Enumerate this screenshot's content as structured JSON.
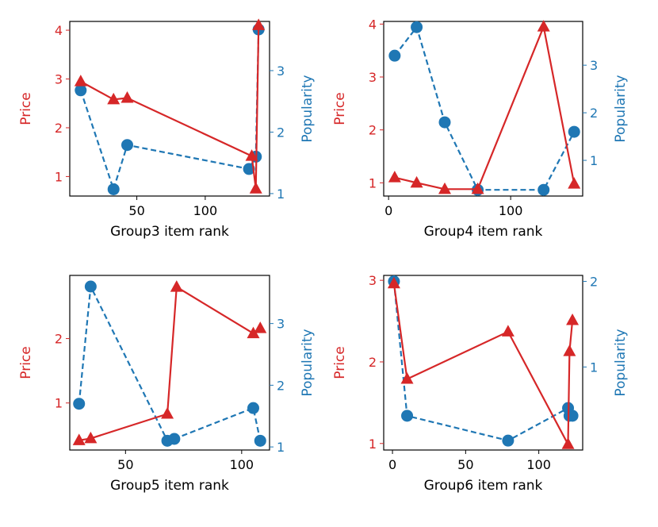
{
  "colors": {
    "price": "#d62728",
    "popularity": "#1f77b4",
    "axes": "#000000"
  },
  "chart_data": [
    {
      "type": "line",
      "xlabel": "Group3 item rank",
      "ylabel_left": "Price",
      "ylabel_right": "Popularity",
      "xlim": [
        1,
        147
      ],
      "ylim_left": [
        0.6,
        4.18
      ],
      "ylim_right": [
        0.96,
        3.8
      ],
      "xticks": [
        50,
        100
      ],
      "yticks_left": [
        1,
        2,
        3,
        4
      ],
      "yticks_right": [
        1,
        2,
        3
      ],
      "series": [
        {
          "name": "Price",
          "axis": "left",
          "style": "solid",
          "marker": "triangle",
          "x": [
            9,
            33,
            43,
            134,
            137,
            139
          ],
          "y": [
            2.95,
            2.58,
            2.61,
            1.42,
            0.75,
            4.1
          ]
        },
        {
          "name": "Popularity",
          "axis": "right",
          "style": "dashed",
          "marker": "circle",
          "x": [
            9,
            33,
            43,
            132,
            137,
            139
          ],
          "y": [
            2.68,
            1.07,
            1.79,
            1.4,
            1.6,
            3.67
          ]
        }
      ]
    },
    {
      "type": "line",
      "xlabel": "Group4 item rank",
      "ylabel_left": "Price",
      "ylabel_right": "Popularity",
      "xlim": [
        -4,
        159
      ],
      "ylim_left": [
        0.75,
        4.05
      ],
      "ylim_right": [
        0.25,
        3.92
      ],
      "xticks": [
        0,
        100
      ],
      "yticks_left": [
        1,
        2,
        3,
        4
      ],
      "yticks_right": [
        1,
        2,
        3
      ],
      "series": [
        {
          "name": "Price",
          "axis": "left",
          "style": "solid",
          "marker": "triangle",
          "x": [
            5,
            23,
            46,
            73,
            127,
            152
          ],
          "y": [
            1.1,
            1.0,
            0.88,
            0.88,
            3.95,
            0.98
          ]
        },
        {
          "name": "Popularity",
          "axis": "right",
          "style": "dashed",
          "marker": "circle",
          "x": [
            5,
            23,
            46,
            73,
            127,
            152
          ],
          "y": [
            3.2,
            3.8,
            1.8,
            0.38,
            0.38,
            1.6
          ]
        }
      ]
    },
    {
      "type": "line",
      "xlabel": "Group5 item rank",
      "ylabel_left": "Price",
      "ylabel_right": "Popularity",
      "xlim": [
        26,
        112
      ],
      "ylim_left": [
        0.27,
        2.98
      ],
      "ylim_right": [
        0.95,
        3.78
      ],
      "xticks": [
        50,
        100
      ],
      "yticks_left": [
        1,
        2
      ],
      "yticks_right": [
        1,
        2,
        3
      ],
      "series": [
        {
          "name": "Price",
          "axis": "left",
          "style": "solid",
          "marker": "triangle",
          "x": [
            30,
            35,
            68,
            72,
            105,
            108
          ],
          "y": [
            0.42,
            0.45,
            0.83,
            2.8,
            2.08,
            2.16
          ]
        },
        {
          "name": "Popularity",
          "axis": "right",
          "style": "dashed",
          "marker": "circle",
          "x": [
            30,
            35,
            68,
            71,
            105,
            108
          ],
          "y": [
            1.7,
            3.6,
            1.1,
            1.13,
            1.63,
            1.1
          ]
        }
      ]
    },
    {
      "type": "line",
      "xlabel": "Group6 item rank",
      "ylabel_left": "Price",
      "ylabel_right": "Popularity",
      "xlim": [
        -6,
        130
      ],
      "ylim_left": [
        0.92,
        3.06
      ],
      "ylim_right": [
        0.03,
        2.07
      ],
      "xticks": [
        0,
        50,
        100
      ],
      "yticks_left": [
        1,
        2,
        3
      ],
      "yticks_right": [
        1,
        2
      ],
      "series": [
        {
          "name": "Price",
          "axis": "left",
          "style": "solid",
          "marker": "triangle",
          "x": [
            1,
            10,
            79,
            120,
            121,
            123
          ],
          "y": [
            2.96,
            1.79,
            2.37,
            0.99,
            2.13,
            2.51
          ]
        },
        {
          "name": "Popularity",
          "axis": "right",
          "style": "dashed",
          "marker": "circle",
          "x": [
            1,
            10,
            79,
            120,
            121,
            123
          ],
          "y": [
            2.0,
            0.43,
            0.14,
            0.52,
            0.43,
            0.43
          ]
        }
      ]
    }
  ]
}
